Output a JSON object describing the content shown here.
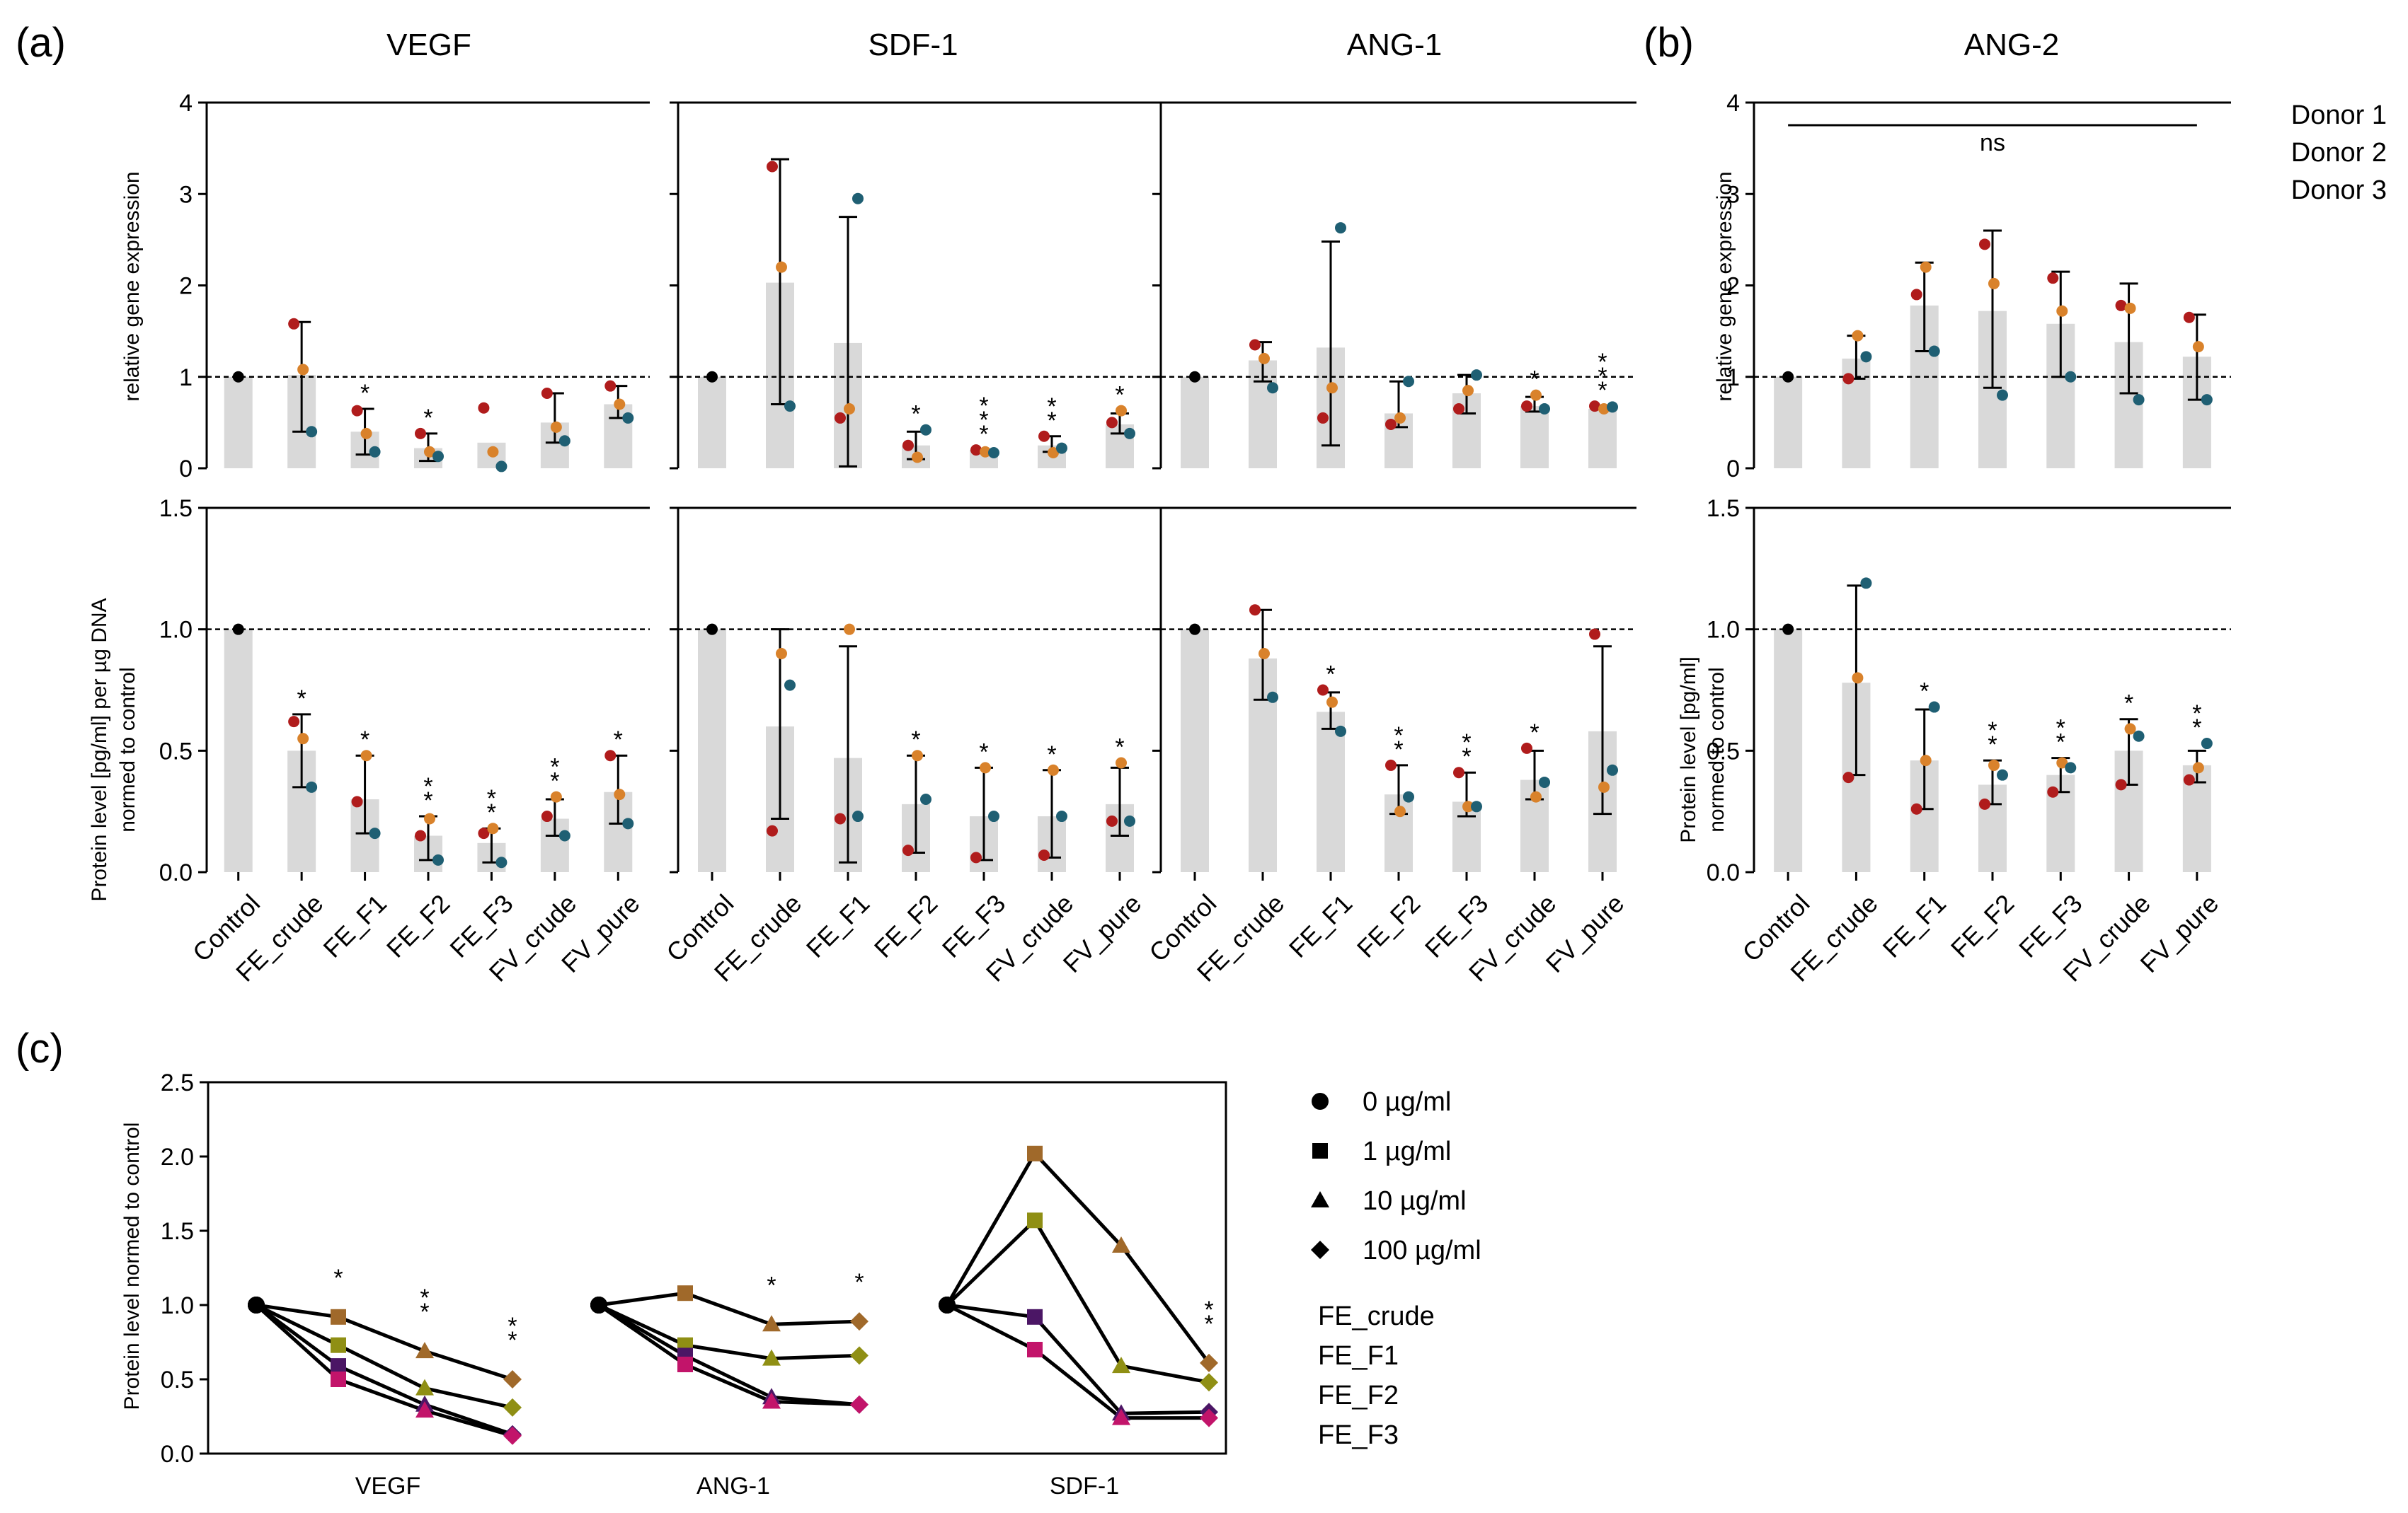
{
  "colors": {
    "donor1": "#b01c1c",
    "donor2": "#d9822b",
    "donor3": "#1f5f73",
    "bar": "#d9d9d9",
    "FE_crude": "#a0692a",
    "FE_F1": "#8f8f14",
    "FE_F2": "#4b1665",
    "FE_F3": "#c2146a"
  },
  "panel_letters": {
    "a": "(a)",
    "b": "(b)",
    "c": "(c)"
  },
  "legend_donors": [
    "Donor 1",
    "Donor 2",
    "Donor 3"
  ],
  "categories": [
    "Control",
    "FE_crude",
    "FE_F1",
    "FE_F2",
    "FE_F3",
    "FV_crude",
    "FV_pure"
  ],
  "axis_labels": {
    "gene_ylabel": "relative gene expression",
    "protein_ylabel": "Protein level [pg/ml] per µg DNA",
    "protein_ylabel2": "normed to control",
    "ang2_protein_ylabel": "Protein level [pg/ml]",
    "ang2_protein_ylabel2": "normed to control",
    "c_ylabel": "Protein level normed to control"
  },
  "chart_data": [
    {
      "id": "VEGF-gene",
      "type": "bar",
      "title": "VEGF",
      "ylabel": "relative gene expression",
      "ylim": [
        0,
        4
      ],
      "yticks": [
        "0",
        "1",
        "2",
        "3",
        "4"
      ],
      "means": [
        1.0,
        1.02,
        0.4,
        0.22,
        0.28,
        0.5,
        0.7
      ],
      "donors": [
        [
          1,
          1,
          1
        ],
        [
          1.58,
          1.08,
          0.4
        ],
        [
          0.63,
          0.38,
          0.18
        ],
        [
          0.38,
          0.18,
          0.13
        ],
        [
          0.66,
          0.18,
          0.02
        ],
        [
          0.82,
          0.45,
          0.3
        ],
        [
          0.9,
          0.7,
          0.55
        ]
      ],
      "err": [
        null,
        [
          0.4,
          1.6
        ],
        [
          0.15,
          0.65
        ],
        [
          0.08,
          0.38
        ],
        null,
        [
          0.28,
          0.82
        ],
        [
          0.55,
          0.9
        ]
      ],
      "sig": [
        "",
        "",
        "*",
        "*",
        "",
        "",
        ""
      ]
    },
    {
      "id": "SDF1-gene",
      "type": "bar",
      "title": "SDF-1",
      "ylim": [
        0,
        4
      ],
      "means": [
        1.0,
        2.03,
        1.37,
        0.25,
        0.2,
        0.25,
        0.48
      ],
      "donors": [
        [
          1,
          1,
          1
        ],
        [
          3.3,
          2.2,
          0.68
        ],
        [
          0.55,
          0.65,
          2.95
        ],
        [
          0.25,
          0.12,
          0.42
        ],
        [
          0.2,
          0.18,
          0.17
        ],
        [
          0.35,
          0.17,
          0.22
        ],
        [
          0.5,
          0.63,
          0.38
        ]
      ],
      "err": [
        null,
        [
          0.7,
          3.38
        ],
        [
          0.02,
          2.75
        ],
        [
          0.1,
          0.4
        ],
        null,
        [
          0.18,
          0.35
        ],
        [
          0.38,
          0.6
        ]
      ],
      "sig": [
        "",
        "",
        "",
        "*",
        "***",
        "**",
        "*"
      ]
    },
    {
      "id": "ANG1-gene",
      "type": "bar",
      "title": "ANG-1",
      "ylim": [
        0,
        4
      ],
      "means": [
        1.0,
        1.18,
        1.32,
        0.6,
        0.82,
        0.68,
        0.65
      ],
      "donors": [
        [
          1,
          1,
          1
        ],
        [
          1.35,
          1.2,
          0.88
        ],
        [
          0.55,
          0.88,
          2.63
        ],
        [
          0.48,
          0.55,
          0.95
        ],
        [
          0.65,
          0.85,
          1.02
        ],
        [
          0.68,
          0.8,
          0.65
        ],
        [
          0.68,
          0.65,
          0.67
        ]
      ],
      "err": [
        null,
        [
          0.95,
          1.38
        ],
        [
          0.25,
          2.48
        ],
        [
          0.45,
          0.95
        ],
        [
          0.6,
          1.02
        ],
        [
          0.62,
          0.78
        ],
        null
      ],
      "sig": [
        "",
        "",
        "",
        "",
        "",
        "*",
        "***"
      ]
    },
    {
      "id": "ANG2-gene",
      "type": "bar",
      "title": "ANG-2",
      "ylim": [
        0,
        4
      ],
      "means": [
        1.0,
        1.2,
        1.78,
        1.72,
        1.58,
        1.38,
        1.22
      ],
      "donors": [
        [
          1,
          1,
          1
        ],
        [
          0.98,
          1.45,
          1.22
        ],
        [
          1.9,
          2.2,
          1.28
        ],
        [
          2.45,
          2.02,
          0.8
        ],
        [
          2.08,
          1.72,
          1.0
        ],
        [
          1.78,
          1.75,
          0.75
        ],
        [
          1.65,
          1.33,
          0.75
        ]
      ],
      "err": [
        null,
        [
          0.98,
          1.45
        ],
        [
          1.28,
          2.25
        ],
        [
          0.88,
          2.6
        ],
        [
          1.0,
          2.15
        ],
        [
          0.82,
          2.02
        ],
        [
          0.75,
          1.68
        ]
      ],
      "sig": [],
      "annotation": "ns"
    },
    {
      "id": "VEGF-protein",
      "type": "bar",
      "ylim": [
        0,
        1.5
      ],
      "yticks": [
        "0.0",
        "0.5",
        "1.0",
        "1.5"
      ],
      "means": [
        1.0,
        0.5,
        0.3,
        0.15,
        0.12,
        0.22,
        0.33
      ],
      "donors": [
        [
          1,
          1,
          1
        ],
        [
          0.62,
          0.55,
          0.35
        ],
        [
          0.29,
          0.48,
          0.16
        ],
        [
          0.15,
          0.22,
          0.05
        ],
        [
          0.16,
          0.18,
          0.04
        ],
        [
          0.23,
          0.31,
          0.15
        ],
        [
          0.48,
          0.32,
          0.2
        ]
      ],
      "err": [
        null,
        [
          0.35,
          0.65
        ],
        [
          0.16,
          0.48
        ],
        [
          0.05,
          0.23
        ],
        [
          0.04,
          0.18
        ],
        [
          0.15,
          0.3
        ],
        [
          0.2,
          0.48
        ]
      ],
      "sig": [
        "",
        "*",
        "*",
        "**",
        "**",
        "**",
        "*"
      ]
    },
    {
      "id": "SDF1-protein",
      "type": "bar",
      "ylim": [
        0,
        1.5
      ],
      "means": [
        1.0,
        0.6,
        0.47,
        0.28,
        0.23,
        0.23,
        0.28
      ],
      "donors": [
        [
          1,
          1,
          1
        ],
        [
          0.17,
          0.9,
          0.77
        ],
        [
          0.22,
          1.0,
          0.23
        ],
        [
          0.09,
          0.48,
          0.3
        ],
        [
          0.06,
          0.43,
          0.23
        ],
        [
          0.07,
          0.42,
          0.23
        ],
        [
          0.21,
          0.45,
          0.21
        ]
      ],
      "err": [
        null,
        [
          0.22,
          1.0
        ],
        [
          0.04,
          0.93
        ],
        [
          0.08,
          0.48
        ],
        [
          0.05,
          0.43
        ],
        [
          0.06,
          0.42
        ],
        [
          0.15,
          0.43
        ]
      ],
      "sig": [
        "",
        "",
        "",
        "*",
        "*",
        "*",
        "*"
      ]
    },
    {
      "id": "ANG1-protein",
      "type": "bar",
      "ylim": [
        0,
        1.5
      ],
      "means": [
        1.0,
        0.88,
        0.66,
        0.32,
        0.29,
        0.38,
        0.58
      ],
      "donors": [
        [
          1,
          1,
          1
        ],
        [
          1.08,
          0.9,
          0.72
        ],
        [
          0.75,
          0.7,
          0.58
        ],
        [
          0.44,
          0.25,
          0.31
        ],
        [
          0.41,
          0.27,
          0.27
        ],
        [
          0.51,
          0.31,
          0.37
        ],
        [
          0.98,
          0.35,
          0.42
        ]
      ],
      "err": [
        null,
        [
          0.71,
          1.08
        ],
        [
          0.59,
          0.74
        ],
        [
          0.24,
          0.44
        ],
        [
          0.23,
          0.41
        ],
        [
          0.3,
          0.5
        ],
        [
          0.24,
          0.93
        ]
      ],
      "sig": [
        "",
        "",
        "*",
        "**",
        "**",
        "*",
        ""
      ]
    },
    {
      "id": "ANG2-protein",
      "type": "bar",
      "ylim": [
        0,
        1.5
      ],
      "means": [
        1.0,
        0.78,
        0.46,
        0.36,
        0.4,
        0.5,
        0.44
      ],
      "donors": [
        [
          1,
          1,
          1
        ],
        [
          0.39,
          0.8,
          1.19
        ],
        [
          0.26,
          0.46,
          0.68
        ],
        [
          0.28,
          0.44,
          0.4
        ],
        [
          0.33,
          0.45,
          0.43
        ],
        [
          0.36,
          0.59,
          0.56
        ],
        [
          0.38,
          0.43,
          0.53
        ]
      ],
      "err": [
        null,
        [
          0.4,
          1.18
        ],
        [
          0.26,
          0.67
        ],
        [
          0.28,
          0.46
        ],
        [
          0.33,
          0.47
        ],
        [
          0.36,
          0.63
        ],
        [
          0.37,
          0.5
        ]
      ],
      "sig": [
        "",
        "",
        "*",
        "**",
        "**",
        "*",
        "**"
      ]
    },
    {
      "id": "dose-response",
      "type": "line",
      "ylabel": "Protein level normed to control",
      "ylim": [
        0,
        2.5
      ],
      "yticks": [
        "0.0",
        "0.5",
        "1.0",
        "1.5",
        "2.0",
        "2.5"
      ],
      "groups": [
        "VEGF",
        "ANG-1",
        "SDF-1"
      ],
      "doses": [
        "0 µg/ml",
        "1 µg/ml",
        "10 µg/ml",
        "100 µg/ml"
      ],
      "series": [
        {
          "name": "FE_crude",
          "VEGF": [
            1.0,
            0.92,
            0.69,
            0.5
          ],
          "ANG-1": [
            1.0,
            1.08,
            0.87,
            0.89
          ],
          "SDF-1": [
            1.0,
            2.02,
            1.4,
            0.61
          ]
        },
        {
          "name": "FE_F1",
          "VEGF": [
            1.0,
            0.73,
            0.44,
            0.31
          ],
          "ANG-1": [
            1.0,
            0.73,
            0.64,
            0.66
          ],
          "SDF-1": [
            1.0,
            1.57,
            0.59,
            0.48
          ]
        },
        {
          "name": "FE_F2",
          "VEGF": [
            1.0,
            0.59,
            0.33,
            0.13
          ],
          "ANG-1": [
            1.0,
            0.66,
            0.38,
            0.33
          ],
          "SDF-1": [
            1.0,
            0.92,
            0.27,
            0.28
          ]
        },
        {
          "name": "FE_F3",
          "VEGF": [
            1.0,
            0.5,
            0.29,
            0.12
          ],
          "ANG-1": [
            1.0,
            0.6,
            0.35,
            0.33
          ],
          "SDF-1": [
            1.0,
            0.7,
            0.24,
            0.24
          ]
        }
      ],
      "sig": {
        "VEGF": [
          "",
          "*",
          "**",
          "**"
        ],
        "ANG-1": [
          "",
          "",
          "*",
          "*"
        ],
        "SDF-1": [
          "",
          "",
          "",
          "**"
        ]
      }
    }
  ]
}
